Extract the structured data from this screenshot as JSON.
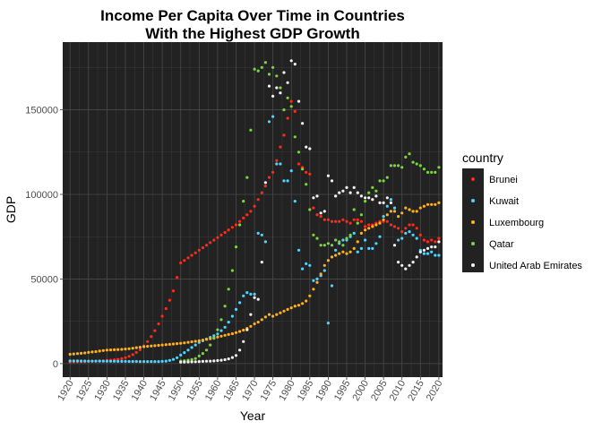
{
  "chart_data": {
    "type": "scatter",
    "title_line1": "Income Per Capita Over Time in Countries",
    "title_line2": "With the Highest GDP Growth",
    "xlabel": "Year",
    "ylabel": "GDP",
    "xlim": [
      1918,
      2021
    ],
    "ylim": [
      -8000,
      190000
    ],
    "x_ticks": [
      1920,
      1925,
      1930,
      1935,
      1940,
      1945,
      1950,
      1955,
      1960,
      1965,
      1970,
      1975,
      1980,
      1985,
      1990,
      1995,
      2000,
      2005,
      2010,
      2015,
      2020
    ],
    "y_ticks": [
      0,
      50000,
      100000,
      150000
    ],
    "y_tick_labels": [
      "0",
      "50000",
      "100000",
      "150000"
    ],
    "background": "#222222",
    "grid": true,
    "legend_title": "country",
    "legend_position": "right",
    "series": [
      {
        "name": "Brunei",
        "color": "#ff2a1a",
        "x": [
          1920,
          1921,
          1922,
          1923,
          1924,
          1925,
          1926,
          1927,
          1928,
          1929,
          1930,
          1931,
          1932,
          1933,
          1934,
          1935,
          1936,
          1937,
          1938,
          1939,
          1940,
          1941,
          1942,
          1943,
          1944,
          1945,
          1946,
          1947,
          1948,
          1949,
          1950,
          1951,
          1952,
          1953,
          1954,
          1955,
          1956,
          1957,
          1958,
          1959,
          1960,
          1961,
          1962,
          1963,
          1964,
          1965,
          1966,
          1967,
          1968,
          1969,
          1970,
          1971,
          1972,
          1973,
          1974,
          1975,
          1976,
          1977,
          1978,
          1979,
          1980,
          1981,
          1982,
          1983,
          1984,
          1985,
          1986,
          1987,
          1988,
          1989,
          1990,
          1991,
          1992,
          1993,
          1994,
          1995,
          1996,
          1997,
          1998,
          1999,
          2000,
          2001,
          2002,
          2003,
          2004,
          2005,
          2006,
          2007,
          2008,
          2009,
          2010,
          2011,
          2012,
          2013,
          2014,
          2015,
          2016,
          2017,
          2018,
          2019,
          2020
        ],
        "y": [
          1000,
          1050,
          1100,
          1150,
          1200,
          1300,
          1400,
          1500,
          1600,
          1700,
          1850,
          2000,
          2200,
          2500,
          2900,
          3500,
          4300,
          5300,
          6600,
          8200,
          10500,
          13000,
          16000,
          19500,
          23500,
          28000,
          32500,
          37500,
          43000,
          51000,
          59500,
          61000,
          62500,
          64000,
          65500,
          67000,
          68500,
          70000,
          71500,
          73000,
          74500,
          76000,
          77500,
          79000,
          80500,
          82000,
          84000,
          86000,
          88000,
          90000,
          93000,
          97000,
          101000,
          105000,
          110000,
          113000,
          120000,
          128000,
          135000,
          145000,
          155000,
          149000,
          118000,
          116000,
          113000,
          112000,
          92000,
          88000,
          87000,
          85000,
          85000,
          84000,
          84000,
          84000,
          85000,
          84000,
          83000,
          85000,
          85000,
          84000,
          81000,
          82000,
          82000,
          83000,
          84000,
          84000,
          84000,
          82000,
          81000,
          80000,
          78000,
          80000,
          82000,
          82000,
          80000,
          76000,
          73000,
          72000,
          73000,
          72000,
          74000
        ]
      },
      {
        "name": "Kuwait",
        "color": "#4fd3ff",
        "x": [
          1920,
          1921,
          1922,
          1923,
          1924,
          1925,
          1926,
          1927,
          1928,
          1929,
          1930,
          1931,
          1932,
          1933,
          1934,
          1935,
          1936,
          1937,
          1938,
          1939,
          1940,
          1941,
          1942,
          1943,
          1944,
          1945,
          1946,
          1947,
          1948,
          1949,
          1950,
          1951,
          1952,
          1953,
          1954,
          1955,
          1956,
          1957,
          1958,
          1959,
          1960,
          1961,
          1962,
          1963,
          1964,
          1965,
          1966,
          1967,
          1968,
          1969,
          1970,
          1971,
          1972,
          1973,
          1974,
          1975,
          1976,
          1977,
          1978,
          1979,
          1980,
          1981,
          1982,
          1983,
          1984,
          1985,
          1986,
          1987,
          1988,
          1989,
          1990,
          1991,
          1992,
          1993,
          1994,
          1995,
          1996,
          1997,
          1998,
          1999,
          2000,
          2001,
          2002,
          2003,
          2004,
          2005,
          2006,
          2007,
          2008,
          2009,
          2010,
          2011,
          2012,
          2013,
          2014,
          2015,
          2016,
          2017,
          2018,
          2019,
          2020
        ],
        "y": [
          1600,
          1600,
          1600,
          1550,
          1550,
          1500,
          1500,
          1450,
          1450,
          1400,
          1400,
          1350,
          1350,
          1300,
          1300,
          1300,
          1250,
          1250,
          1250,
          1200,
          1200,
          1200,
          1200,
          1200,
          1200,
          1300,
          1500,
          1900,
          2500,
          3500,
          5000,
          6500,
          8000,
          9500,
          11000,
          12500,
          13500,
          14500,
          15500,
          16500,
          17500,
          19500,
          21500,
          24500,
          28000,
          32000,
          36000,
          40000,
          42000,
          41000,
          41000,
          77000,
          76000,
          72000,
          143000,
          146000,
          118000,
          118000,
          108000,
          108000,
          114000,
          96000,
          67000,
          56000,
          59000,
          58000,
          49000,
          50000,
          52000,
          55000,
          24000,
          46000,
          67000,
          71000,
          73000,
          73000,
          75000,
          77000,
          66000,
          68000,
          73000,
          68000,
          68000,
          71000,
          75000,
          87000,
          93000,
          97000,
          92000,
          73000,
          74000,
          77000,
          78000,
          76000,
          74000,
          67000,
          65000,
          65000,
          66000,
          64000,
          64000
        ]
      },
      {
        "name": "Luxembourg",
        "color": "#ffb01f",
        "x": [
          1920,
          1921,
          1922,
          1923,
          1924,
          1925,
          1926,
          1927,
          1928,
          1929,
          1930,
          1931,
          1932,
          1933,
          1934,
          1935,
          1936,
          1937,
          1938,
          1939,
          1940,
          1941,
          1942,
          1943,
          1944,
          1945,
          1946,
          1947,
          1948,
          1949,
          1950,
          1951,
          1952,
          1953,
          1954,
          1955,
          1956,
          1957,
          1958,
          1959,
          1960,
          1961,
          1962,
          1963,
          1964,
          1965,
          1966,
          1967,
          1968,
          1969,
          1970,
          1971,
          1972,
          1973,
          1974,
          1975,
          1976,
          1977,
          1978,
          1979,
          1980,
          1981,
          1982,
          1983,
          1984,
          1985,
          1986,
          1987,
          1988,
          1989,
          1990,
          1991,
          1992,
          1993,
          1994,
          1995,
          1996,
          1997,
          1998,
          1999,
          2000,
          2001,
          2002,
          2003,
          2004,
          2005,
          2006,
          2007,
          2008,
          2009,
          2010,
          2011,
          2012,
          2013,
          2014,
          2015,
          2016,
          2017,
          2018,
          2019,
          2020
        ],
        "y": [
          5500,
          5700,
          5900,
          6100,
          6300,
          6600,
          6900,
          7100,
          7400,
          7700,
          8000,
          8100,
          8200,
          8300,
          8400,
          8600,
          8800,
          9100,
          9400,
          9700,
          10000,
          10200,
          10400,
          10600,
          10800,
          11000,
          11200,
          11400,
          11600,
          11800,
          12000,
          12300,
          12600,
          12900,
          13200,
          13500,
          13900,
          14300,
          14700,
          15200,
          15700,
          16200,
          16700,
          17200,
          17700,
          18300,
          19000,
          19800,
          20800,
          22000,
          23500,
          24500,
          26000,
          27500,
          29000,
          28000,
          29000,
          30000,
          31000,
          32000,
          33000,
          34000,
          34500,
          35500,
          37000,
          40000,
          44000,
          48000,
          53000,
          58000,
          61000,
          63000,
          64000,
          65000,
          66000,
          65000,
          66000,
          68000,
          72000,
          77000,
          79000,
          80000,
          81000,
          82000,
          83000,
          85000,
          88000,
          90000,
          90000,
          87000,
          89000,
          92000,
          91000,
          90000,
          90000,
          92000,
          93000,
          94000,
          94000,
          94000,
          95000
        ]
      },
      {
        "name": "Qatar",
        "color": "#7ad63c",
        "x": [
          1950,
          1951,
          1952,
          1953,
          1954,
          1955,
          1956,
          1957,
          1958,
          1959,
          1960,
          1961,
          1962,
          1963,
          1964,
          1965,
          1966,
          1967,
          1968,
          1969,
          1970,
          1971,
          1972,
          1973,
          1974,
          1975,
          1976,
          1977,
          1978,
          1979,
          1980,
          1981,
          1982,
          1983,
          1984,
          1985,
          1986,
          1987,
          1988,
          1989,
          1990,
          1991,
          1992,
          1993,
          1994,
          1995,
          1996,
          1997,
          1998,
          1999,
          2000,
          2001,
          2002,
          2003,
          2004,
          2005,
          2006,
          2007,
          2008,
          2009,
          2010,
          2011,
          2012,
          2013,
          2014,
          2015,
          2016,
          2017,
          2018,
          2019,
          2020
        ],
        "y": [
          1500,
          1700,
          2000,
          2400,
          3000,
          4500,
          6000,
          8000,
          11000,
          15000,
          20000,
          26000,
          34000,
          44000,
          55000,
          69000,
          82000,
          96000,
          110000,
          138000,
          174000,
          173000,
          175000,
          178000,
          171000,
          175000,
          170000,
          163000,
          150000,
          157000,
          152000,
          134000,
          125000,
          115000,
          106000,
          91000,
          76000,
          74000,
          70000,
          70000,
          71000,
          70000,
          73000,
          72000,
          70000,
          74000,
          76000,
          91000,
          83000,
          88000,
          96000,
          101000,
          104000,
          102000,
          108000,
          108000,
          110000,
          117000,
          117000,
          117000,
          116000,
          122000,
          124000,
          119000,
          118000,
          117000,
          115000,
          113000,
          113000,
          113000,
          116000
        ]
      },
      {
        "name": "United Arab Emirates",
        "color": "#f2f2f2",
        "x": [
          1950,
          1951,
          1952,
          1953,
          1954,
          1955,
          1956,
          1957,
          1958,
          1959,
          1960,
          1961,
          1962,
          1963,
          1964,
          1965,
          1966,
          1967,
          1968,
          1969,
          1970,
          1971,
          1972,
          1973,
          1974,
          1975,
          1976,
          1977,
          1978,
          1979,
          1980,
          1981,
          1982,
          1983,
          1984,
          1985,
          1986,
          1987,
          1988,
          1989,
          1990,
          1991,
          1992,
          1993,
          1994,
          1995,
          1996,
          1997,
          1998,
          1999,
          2000,
          2001,
          2002,
          2003,
          2004,
          2005,
          2006,
          2007,
          2008,
          2009,
          2010,
          2011,
          2012,
          2013,
          2014,
          2015,
          2016,
          2017,
          2018,
          2019,
          2020
        ],
        "y": [
          900,
          950,
          1000,
          1050,
          1100,
          1200,
          1300,
          1400,
          1500,
          1600,
          1800,
          2000,
          2300,
          2800,
          3600,
          4800,
          8000,
          13000,
          20000,
          29000,
          39000,
          38000,
          60000,
          107000,
          164000,
          158000,
          163000,
          160000,
          172000,
          166000,
          179000,
          177000,
          155000,
          142000,
          128000,
          127000,
          98000,
          99000,
          89000,
          90000,
          111000,
          108000,
          99000,
          101000,
          102000,
          104000,
          101000,
          104000,
          101000,
          99000,
          98000,
          98000,
          97000,
          99000,
          95000,
          95000,
          98000,
          95000,
          70000,
          60000,
          58000,
          56000,
          58000,
          60000,
          63000,
          66000,
          67000,
          68000,
          69000,
          69000,
          72000
        ]
      }
    ]
  }
}
